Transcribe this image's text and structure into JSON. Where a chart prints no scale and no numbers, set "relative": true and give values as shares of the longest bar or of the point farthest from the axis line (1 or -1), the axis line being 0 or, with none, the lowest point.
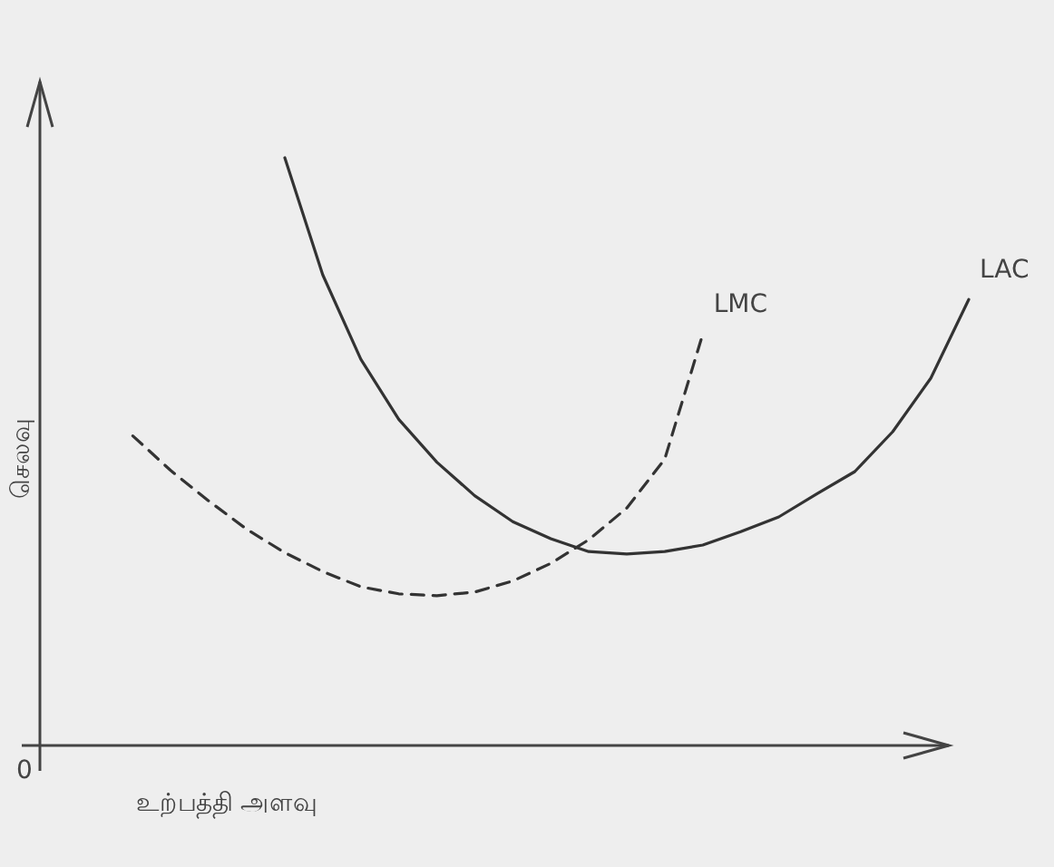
{
  "chart_data": {
    "type": "line",
    "relative": true,
    "xlabel": "உற்பத்தி அளவு",
    "ylabel": "செலவு",
    "annotations": [
      "0"
    ],
    "categories": [
      null,
      null,
      null,
      null,
      null,
      null,
      null,
      null,
      null,
      null,
      null,
      null,
      null,
      null,
      null,
      null,
      null,
      null,
      null,
      null,
      null,
      null,
      null
    ],
    "series": [
      {
        "name": "LAC",
        "color": "#333333",
        "line_style": "solid",
        "values": [
          null,
          null,
          null,
          null,
          1.0,
          0.801,
          0.657,
          0.555,
          0.482,
          0.425,
          0.381,
          0.352,
          0.33,
          0.326,
          0.33,
          0.341,
          0.364,
          0.389,
          0.428,
          0.466,
          0.534,
          0.625,
          0.759
        ]
      },
      {
        "name": "LMC",
        "color": "#333333",
        "line_style": "dashed",
        "values": [
          0.527,
          0.468,
          0.416,
          0.368,
          0.328,
          0.296,
          0.27,
          0.258,
          0.255,
          0.261,
          0.28,
          0.31,
          0.35,
          0.404,
          0.487,
          0.7,
          null,
          null,
          null,
          null,
          null,
          null,
          null
        ]
      }
    ]
  }
}
